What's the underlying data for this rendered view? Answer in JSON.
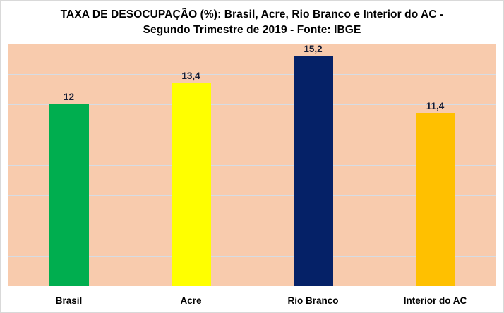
{
  "chart_data": {
    "type": "bar",
    "title": "TAXA DE DESOCUPAÇÃO (%): Brasil, Acre, Rio Branco e Interior do AC - Segundo Trimestre de 2019 - Fonte: IBGE",
    "title_lines": [
      "TAXA DE DESOCUPAÇÃO (%): Brasil, Acre, Rio Branco e Interior do AC -",
      "Segundo Trimestre de 2019 - Fonte: IBGE"
    ],
    "categories": [
      "Brasil",
      "Acre",
      "Rio Branco",
      "Interior do AC"
    ],
    "values": [
      12,
      13.4,
      15.2,
      11.4
    ],
    "value_labels": [
      "12",
      "13,4",
      "15,2",
      "11,4"
    ],
    "bar_colors": [
      "#00ae4f",
      "#ffff00",
      "#052167",
      "#ffc000"
    ],
    "xlabel": "",
    "ylabel": "",
    "ylim": [
      0,
      16
    ],
    "grid_step": 2,
    "grid": true,
    "legend": false,
    "plot_background": "#f8cbad",
    "gridline_color": "#d6dce4",
    "frame_border_color": "#d9d9d9",
    "value_label_color": "#141b33",
    "title_color": "#000000"
  }
}
